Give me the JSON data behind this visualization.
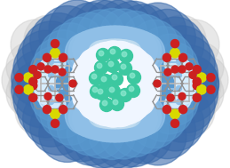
{
  "figsize": [
    2.59,
    1.89
  ],
  "dpi": 100,
  "bg_color": "#ffffff",
  "outer_surface_color": "#cccccc",
  "calix_blue_outer": "#3a6aaa",
  "calix_blue_mid": "#5a9ad0",
  "calix_blue_light": "#90c0e8",
  "calix_blue_highlight": "#c0dcf0",
  "cavity_color": "#f0f6ff",
  "teal_ball": "#3cc8a0",
  "teal_highlight": "#90e8d0",
  "stick_gray": "#909090",
  "stick_dark": "#505050",
  "stick_light": "#b8b8b8",
  "red_color": "#cc2020",
  "yellow_color": "#d8d800",
  "white_color": "#ffffff"
}
